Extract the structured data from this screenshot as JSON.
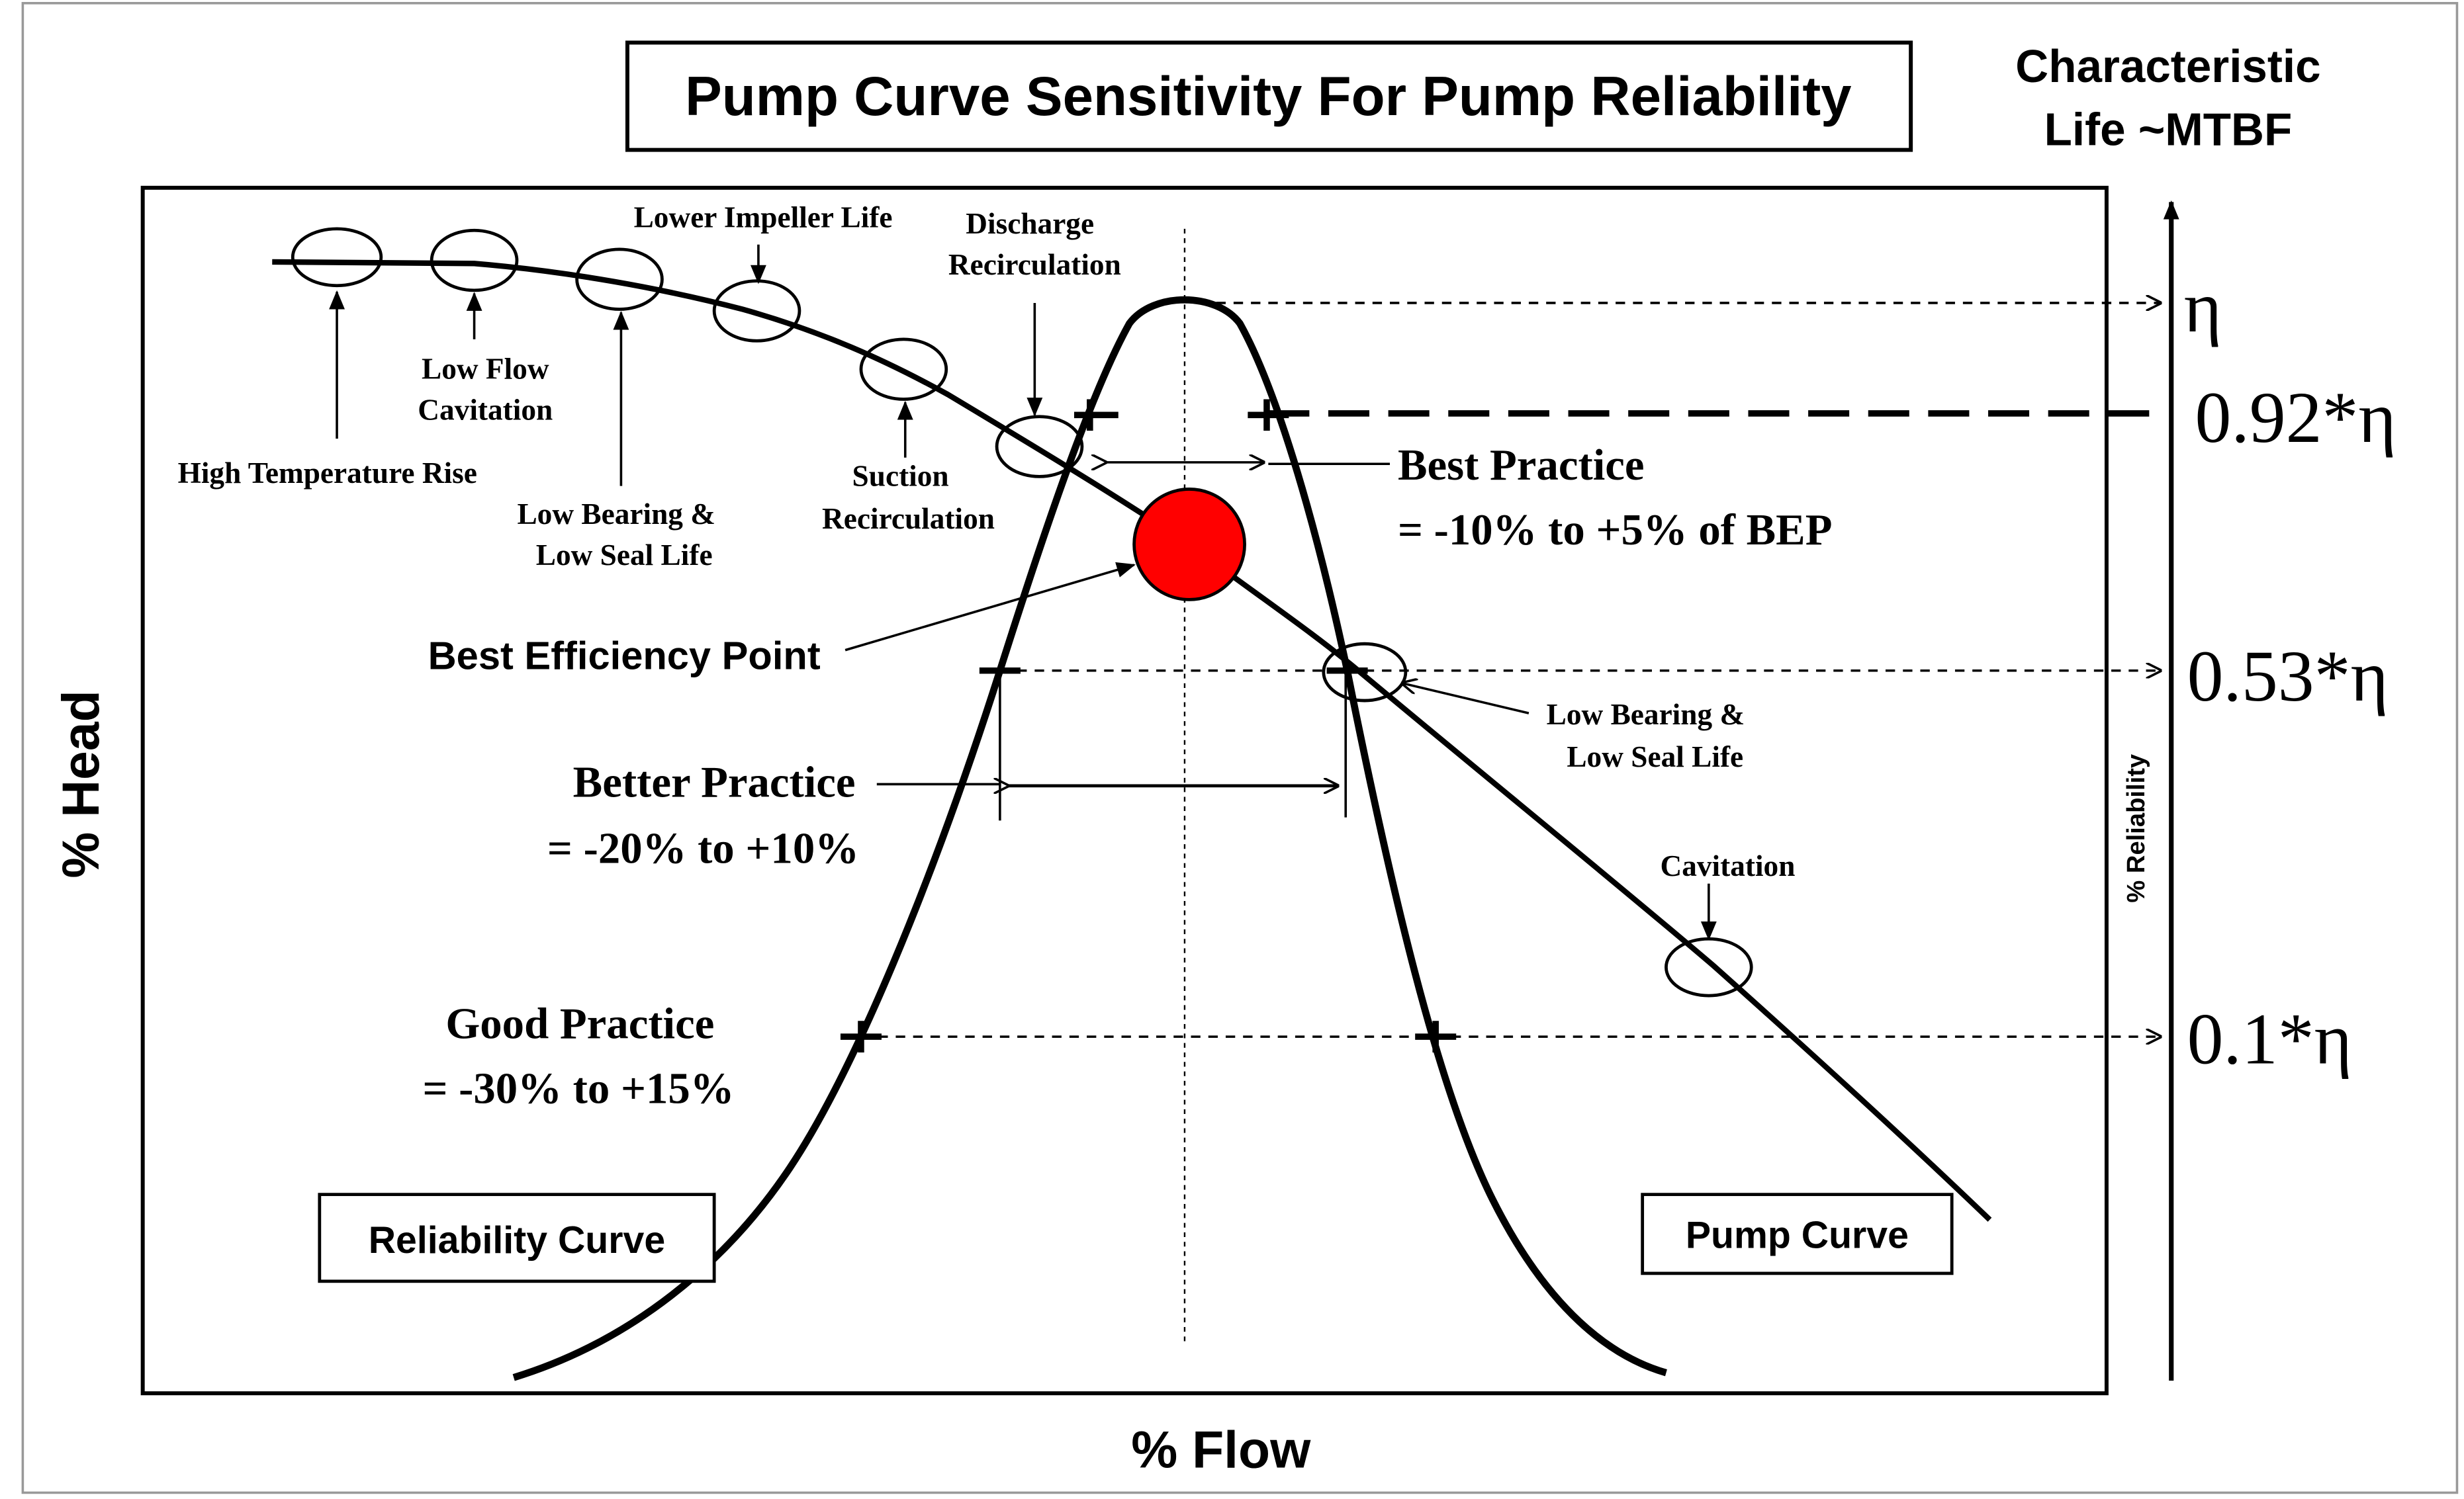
{
  "title": "Pump Curve Sensitivity For Pump Reliability",
  "right_axis_title": [
    "Characteristic",
    "Life ~MTBF"
  ],
  "right_axis_label": "% Reliability",
  "x_axis_label": "% Flow",
  "y_axis_label": "% Head",
  "reliability_levels": [
    "η",
    "0.92*η",
    "0.53*η",
    "0.1*η"
  ],
  "pump_curve_annotations": {
    "high_temp": "High Temperature Rise",
    "low_flow": [
      "Low Flow",
      "Cavitation"
    ],
    "low_bearing_left": [
      "Low Bearing &",
      "Low Seal Life"
    ],
    "lower_impeller": "Lower Impeller Life",
    "suction": [
      "Suction",
      "Recirculation"
    ],
    "discharge": [
      "Discharge",
      "Recirculation"
    ],
    "low_bearing_right": [
      "Low Bearing  &",
      "Low Seal Life"
    ],
    "cavitation": "Cavitation"
  },
  "bep_label": "Best Efficiency Point",
  "practices": {
    "best": [
      "Best Practice",
      "= -10% to +5% of BEP"
    ],
    "better": [
      "Better Practice",
      "= -20% to +10%"
    ],
    "good": [
      "Good Practice",
      "= -30% to +15%"
    ]
  },
  "legend": {
    "reliability": "Reliability Curve",
    "pump": "Pump Curve"
  },
  "colors": {
    "bep_marker": "#ff0000",
    "ink": "#000000"
  }
}
